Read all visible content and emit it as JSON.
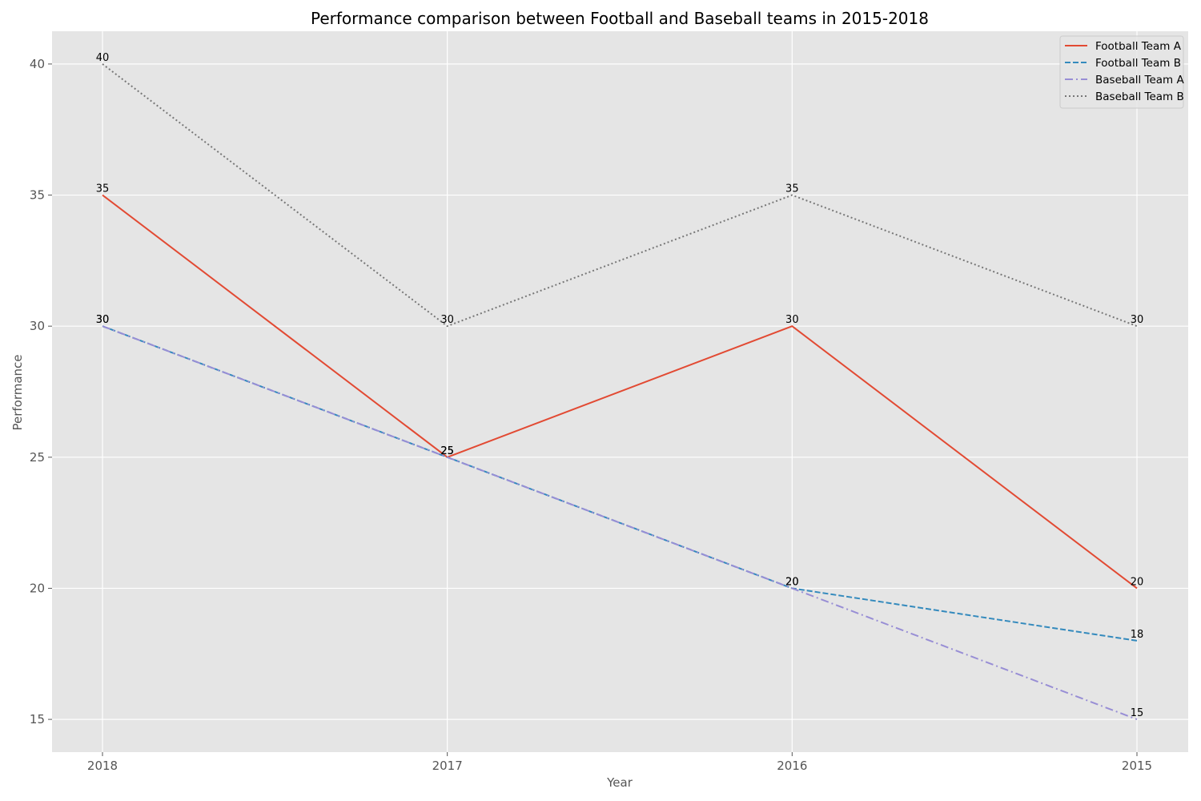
{
  "chart_data": {
    "type": "line",
    "title": "Performance comparison between Football and Baseball teams in 2015-2018",
    "xlabel": "Year",
    "ylabel": "Performance",
    "categories": [
      "2018",
      "2017",
      "2016",
      "2015"
    ],
    "yticks": [
      15,
      20,
      25,
      30,
      35,
      40
    ],
    "ylim": [
      13.75,
      41.25
    ],
    "grid": true,
    "legend_position": "top-right",
    "series": [
      {
        "name": "Football Team A",
        "values": [
          35,
          25,
          30,
          20
        ],
        "color": "#E24A33",
        "line_style": "solid"
      },
      {
        "name": "Football Team B",
        "values": [
          30,
          25,
          20,
          18
        ],
        "color": "#348ABD",
        "line_style": "dashed"
      },
      {
        "name": "Baseball Team A",
        "values": [
          30,
          25,
          20,
          15
        ],
        "color": "#988ED5",
        "line_style": "dashdot"
      },
      {
        "name": "Baseball Team B",
        "values": [
          40,
          30,
          35,
          30
        ],
        "color": "#777777",
        "line_style": "dotted"
      }
    ],
    "background_color": "#E5E5E5",
    "grid_color": "#FFFFFF"
  }
}
